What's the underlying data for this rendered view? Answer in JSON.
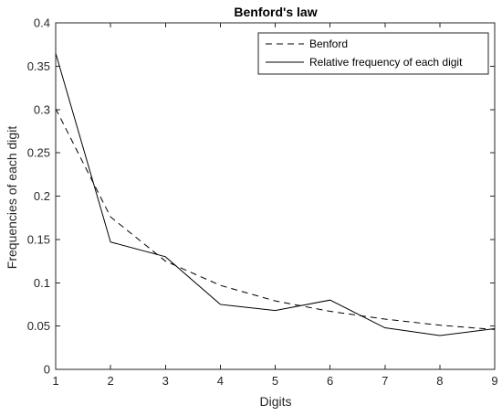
{
  "chart_data": {
    "type": "line",
    "title": "Benford's law",
    "xlabel": "Digits",
    "ylabel": "Frequencies of each digit",
    "x": [
      1,
      2,
      3,
      4,
      5,
      6,
      7,
      8,
      9
    ],
    "xlim": [
      1,
      9
    ],
    "ylim": [
      0,
      0.4
    ],
    "xticks": [
      "1",
      "2",
      "3",
      "4",
      "5",
      "6",
      "7",
      "8",
      "9"
    ],
    "yticks": [
      "0",
      "0.05",
      "0.1",
      "0.15",
      "0.2",
      "0.25",
      "0.3",
      "0.35",
      "0.4"
    ],
    "grid": false,
    "legend_position": "top-right",
    "series": [
      {
        "name": "Benford",
        "style": "dashed",
        "color": "#000000",
        "values": [
          0.301,
          0.176,
          0.125,
          0.097,
          0.079,
          0.067,
          0.058,
          0.051,
          0.046
        ]
      },
      {
        "name": "Relative frequency of each digit",
        "style": "solid",
        "color": "#000000",
        "values": [
          0.365,
          0.147,
          0.13,
          0.075,
          0.068,
          0.08,
          0.048,
          0.039,
          0.047
        ]
      }
    ]
  }
}
